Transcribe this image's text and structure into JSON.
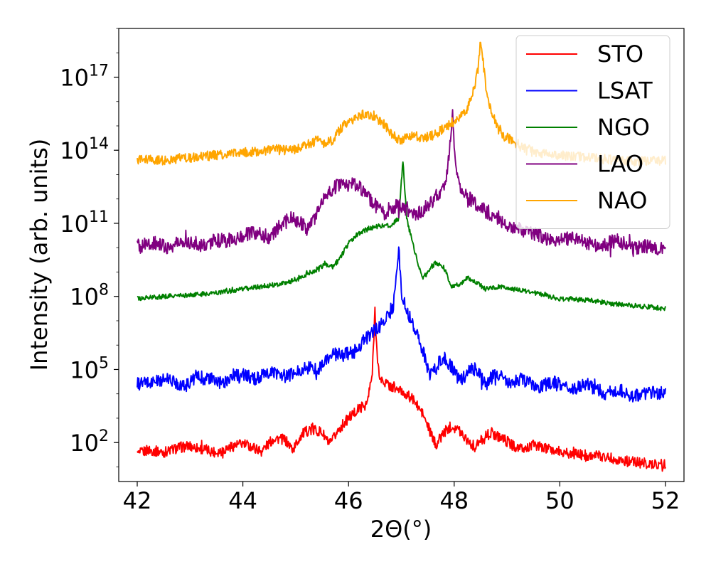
{
  "chart_data": {
    "type": "line",
    "title": "",
    "xlabel": "2Θ(°)",
    "ylabel": "Intensity (arb. units)",
    "xlim": [
      41.65,
      52.35
    ],
    "ylim_log10": [
      0.4,
      19.0
    ],
    "y_scale": "log",
    "grid": false,
    "legend_position": "top-right",
    "x_ticks": [
      {
        "value": 42,
        "label": "42"
      },
      {
        "value": 44,
        "label": "44"
      },
      {
        "value": 46,
        "label": "46"
      },
      {
        "value": 48,
        "label": "48"
      },
      {
        "value": 50,
        "label": "50"
      },
      {
        "value": 52,
        "label": "52"
      }
    ],
    "y_ticks": [
      {
        "exp": 2,
        "base": "10",
        "sup": "2"
      },
      {
        "exp": 5,
        "base": "10",
        "sup": "5"
      },
      {
        "exp": 8,
        "base": "10",
        "sup": "8"
      },
      {
        "exp": 11,
        "base": "10",
        "sup": "11"
      },
      {
        "exp": 14,
        "base": "10",
        "sup": "14"
      },
      {
        "exp": 17,
        "base": "10",
        "sup": "17"
      }
    ],
    "series": [
      {
        "name": "STO",
        "color": "#ff0000",
        "noise": 0.22,
        "points_log10": [
          [
            42.0,
            1.5
          ],
          [
            42.2,
            1.7
          ],
          [
            42.5,
            1.6
          ],
          [
            42.8,
            1.8
          ],
          [
            43.0,
            1.85
          ],
          [
            43.3,
            1.7
          ],
          [
            43.5,
            1.6
          ],
          [
            43.8,
            1.85
          ],
          [
            44.0,
            1.95
          ],
          [
            44.2,
            1.8
          ],
          [
            44.35,
            1.65
          ],
          [
            44.6,
            2.2
          ],
          [
            44.8,
            2.1
          ],
          [
            44.95,
            1.7
          ],
          [
            45.1,
            2.3
          ],
          [
            45.3,
            2.6
          ],
          [
            45.5,
            2.4
          ],
          [
            45.65,
            1.9
          ],
          [
            45.8,
            2.5
          ],
          [
            46.0,
            3.0
          ],
          [
            46.2,
            3.4
          ],
          [
            46.35,
            3.6
          ],
          [
            46.45,
            4.8
          ],
          [
            46.5,
            7.5
          ],
          [
            46.55,
            5.2
          ],
          [
            46.6,
            4.6
          ],
          [
            46.8,
            4.3
          ],
          [
            47.0,
            4.1
          ],
          [
            47.2,
            3.8
          ],
          [
            47.4,
            3.2
          ],
          [
            47.55,
            2.4
          ],
          [
            47.65,
            1.9
          ],
          [
            47.8,
            2.4
          ],
          [
            47.95,
            2.7
          ],
          [
            48.1,
            2.5
          ],
          [
            48.3,
            2.0
          ],
          [
            48.4,
            1.8
          ],
          [
            48.55,
            2.2
          ],
          [
            48.7,
            2.4
          ],
          [
            48.9,
            2.2
          ],
          [
            49.1,
            1.9
          ],
          [
            49.3,
            1.7
          ],
          [
            49.5,
            1.9
          ],
          [
            49.8,
            1.7
          ],
          [
            50.1,
            1.6
          ],
          [
            50.4,
            1.5
          ],
          [
            50.8,
            1.45
          ],
          [
            51.2,
            1.25
          ],
          [
            51.6,
            1.15
          ],
          [
            52.0,
            1.1
          ]
        ]
      },
      {
        "name": "LSAT",
        "color": "#0000ff",
        "noise": 0.28,
        "points_log10": [
          [
            42.0,
            4.4
          ],
          [
            42.3,
            4.5
          ],
          [
            42.6,
            4.6
          ],
          [
            42.9,
            4.3
          ],
          [
            43.1,
            4.7
          ],
          [
            43.4,
            4.6
          ],
          [
            43.6,
            4.4
          ],
          [
            43.8,
            4.75
          ],
          [
            44.0,
            4.8
          ],
          [
            44.2,
            4.6
          ],
          [
            44.4,
            4.75
          ],
          [
            44.6,
            4.9
          ],
          [
            44.8,
            4.7
          ],
          [
            45.0,
            4.85
          ],
          [
            45.2,
            5.1
          ],
          [
            45.4,
            5.0
          ],
          [
            45.55,
            5.3
          ],
          [
            45.7,
            5.6
          ],
          [
            45.9,
            5.6
          ],
          [
            46.1,
            5.7
          ],
          [
            46.3,
            6.2
          ],
          [
            46.5,
            6.6
          ],
          [
            46.7,
            7.0
          ],
          [
            46.85,
            7.6
          ],
          [
            46.95,
            10.0
          ],
          [
            47.0,
            8.2
          ],
          [
            47.1,
            7.4
          ],
          [
            47.2,
            7.0
          ],
          [
            47.35,
            6.2
          ],
          [
            47.5,
            5.0
          ],
          [
            47.6,
            4.9
          ],
          [
            47.8,
            5.5
          ],
          [
            47.95,
            5.1
          ],
          [
            48.1,
            4.5
          ],
          [
            48.3,
            5.0
          ],
          [
            48.45,
            5.0
          ],
          [
            48.6,
            4.4
          ],
          [
            48.8,
            4.9
          ],
          [
            49.0,
            4.5
          ],
          [
            49.3,
            4.6
          ],
          [
            49.6,
            4.3
          ],
          [
            49.9,
            4.5
          ],
          [
            50.2,
            4.2
          ],
          [
            50.5,
            4.4
          ],
          [
            50.8,
            4.0
          ],
          [
            51.1,
            4.2
          ],
          [
            51.4,
            3.9
          ],
          [
            51.7,
            4.1
          ],
          [
            52.0,
            4.0
          ]
        ]
      },
      {
        "name": "NGO",
        "color": "#008000",
        "noise": 0.1,
        "points_log10": [
          [
            42.0,
            7.9
          ],
          [
            42.5,
            8.0
          ],
          [
            43.0,
            8.05
          ],
          [
            43.5,
            8.15
          ],
          [
            44.0,
            8.3
          ],
          [
            44.5,
            8.45
          ],
          [
            44.8,
            8.55
          ],
          [
            45.0,
            8.7
          ],
          [
            45.2,
            8.9
          ],
          [
            45.4,
            9.1
          ],
          [
            45.55,
            9.3
          ],
          [
            45.7,
            9.2
          ],
          [
            45.85,
            9.6
          ],
          [
            46.0,
            10.2
          ],
          [
            46.2,
            10.6
          ],
          [
            46.4,
            10.8
          ],
          [
            46.6,
            10.9
          ],
          [
            46.8,
            10.9
          ],
          [
            46.95,
            11.2
          ],
          [
            47.03,
            13.6
          ],
          [
            47.1,
            11.2
          ],
          [
            47.2,
            10.3
          ],
          [
            47.3,
            9.5
          ],
          [
            47.4,
            8.7
          ],
          [
            47.5,
            9.0
          ],
          [
            47.65,
            9.4
          ],
          [
            47.8,
            9.2
          ],
          [
            47.95,
            8.4
          ],
          [
            48.1,
            8.5
          ],
          [
            48.25,
            8.75
          ],
          [
            48.4,
            8.6
          ],
          [
            48.6,
            8.3
          ],
          [
            48.9,
            8.4
          ],
          [
            49.1,
            8.3
          ],
          [
            49.5,
            8.15
          ],
          [
            50.0,
            7.9
          ],
          [
            50.5,
            7.85
          ],
          [
            51.0,
            7.7
          ],
          [
            51.5,
            7.6
          ],
          [
            52.0,
            7.5
          ]
        ]
      },
      {
        "name": "LAO",
        "color": "#800080",
        "noise": 0.3,
        "points_log10": [
          [
            42.0,
            10.0
          ],
          [
            42.3,
            10.2
          ],
          [
            42.6,
            10.0
          ],
          [
            42.9,
            10.3
          ],
          [
            43.2,
            10.1
          ],
          [
            43.5,
            10.3
          ],
          [
            43.8,
            10.3
          ],
          [
            44.0,
            10.5
          ],
          [
            44.3,
            10.6
          ],
          [
            44.5,
            10.4
          ],
          [
            44.7,
            10.9
          ],
          [
            44.9,
            11.2
          ],
          [
            45.1,
            11.0
          ],
          [
            45.25,
            10.7
          ],
          [
            45.4,
            11.5
          ],
          [
            45.6,
            12.2
          ],
          [
            45.8,
            12.6
          ],
          [
            46.0,
            12.7
          ],
          [
            46.2,
            12.5
          ],
          [
            46.4,
            12.0
          ],
          [
            46.55,
            11.6
          ],
          [
            46.65,
            11.4
          ],
          [
            46.8,
            11.6
          ],
          [
            46.95,
            11.75
          ],
          [
            47.1,
            11.6
          ],
          [
            47.3,
            11.4
          ],
          [
            47.5,
            11.7
          ],
          [
            47.7,
            12.2
          ],
          [
            47.85,
            12.8
          ],
          [
            47.93,
            14.3
          ],
          [
            47.97,
            15.7
          ],
          [
            48.0,
            14.0
          ],
          [
            48.1,
            12.6
          ],
          [
            48.3,
            12.0
          ],
          [
            48.5,
            11.6
          ],
          [
            48.8,
            11.3
          ],
          [
            49.0,
            10.9
          ],
          [
            49.3,
            10.7
          ],
          [
            49.6,
            10.5
          ],
          [
            49.9,
            10.3
          ],
          [
            50.2,
            10.4
          ],
          [
            50.5,
            10.2
          ],
          [
            50.8,
            10.1
          ],
          [
            51.1,
            10.3
          ],
          [
            51.4,
            10.0
          ],
          [
            51.7,
            10.1
          ],
          [
            52.0,
            9.9
          ]
        ]
      },
      {
        "name": "NAO",
        "color": "#ffa500",
        "noise": 0.2,
        "points_log10": [
          [
            42.0,
            13.6
          ],
          [
            42.5,
            13.6
          ],
          [
            43.0,
            13.7
          ],
          [
            43.5,
            13.8
          ],
          [
            44.0,
            13.9
          ],
          [
            44.5,
            14.0
          ],
          [
            44.8,
            14.1
          ],
          [
            45.0,
            14.0
          ],
          [
            45.2,
            14.2
          ],
          [
            45.4,
            14.4
          ],
          [
            45.55,
            14.3
          ],
          [
            45.7,
            14.4
          ],
          [
            45.9,
            15.0
          ],
          [
            46.1,
            15.3
          ],
          [
            46.3,
            15.5
          ],
          [
            46.5,
            15.4
          ],
          [
            46.7,
            15.0
          ],
          [
            46.85,
            14.6
          ],
          [
            47.0,
            14.4
          ],
          [
            47.2,
            14.6
          ],
          [
            47.4,
            14.5
          ],
          [
            47.6,
            14.6
          ],
          [
            47.8,
            14.9
          ],
          [
            48.0,
            15.2
          ],
          [
            48.2,
            15.5
          ],
          [
            48.35,
            16.3
          ],
          [
            48.45,
            17.3
          ],
          [
            48.5,
            18.6
          ],
          [
            48.55,
            17.6
          ],
          [
            48.6,
            16.6
          ],
          [
            48.7,
            15.5
          ],
          [
            48.9,
            14.7
          ],
          [
            49.2,
            14.2
          ],
          [
            49.6,
            13.9
          ],
          [
            50.0,
            13.8
          ],
          [
            50.5,
            13.7
          ],
          [
            51.0,
            13.6
          ],
          [
            51.5,
            13.55
          ],
          [
            52.0,
            13.6
          ]
        ]
      }
    ]
  }
}
